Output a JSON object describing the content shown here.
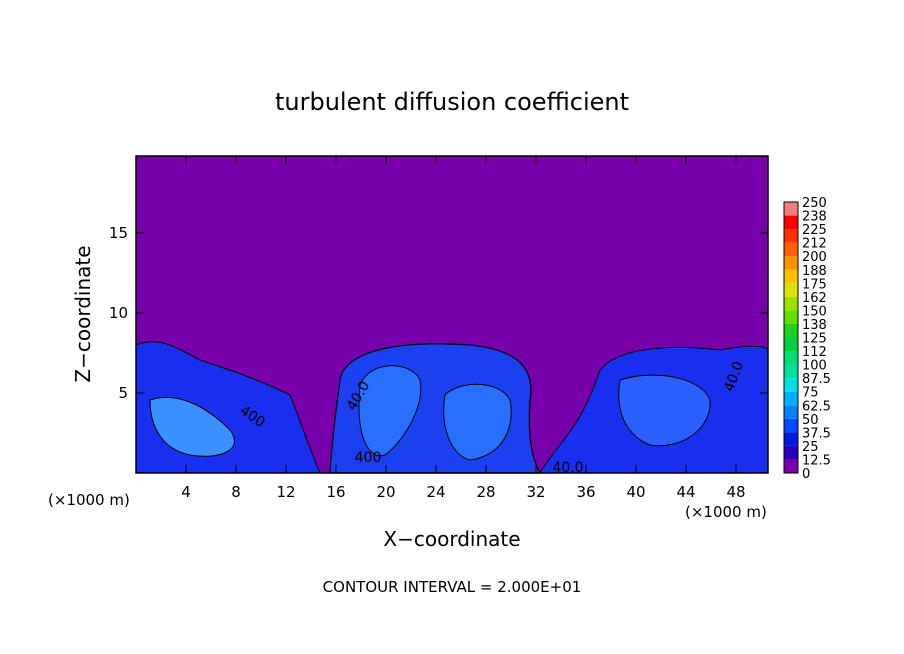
{
  "chart_data": {
    "type": "contour",
    "title": "turbulent diffusion coefficient",
    "xlabel": "X−coordinate",
    "ylabel": "Z−coordinate",
    "x_unit": "(×1000 m)",
    "footer": "CONTOUR INTERVAL = 2.000E+01",
    "xlim": [
      0,
      50.56
    ],
    "ylim": [
      0,
      19.8
    ],
    "xticks": [
      4,
      8,
      12,
      16,
      20,
      24,
      28,
      32,
      36,
      40,
      44,
      48
    ],
    "yticks": [
      5,
      10,
      15
    ],
    "contour_labels": [
      "400",
      "40.0",
      "400",
      "40.0",
      "40.0"
    ],
    "colorbar": {
      "levels": [
        0,
        12.5,
        25,
        37.5,
        50,
        62.5,
        75,
        87.5,
        100,
        112,
        125,
        138,
        150,
        162,
        175,
        188,
        200,
        212,
        225,
        238,
        250
      ],
      "colors": [
        "#7700aa",
        "#2a00c0",
        "#0018e0",
        "#0048ff",
        "#0080ff",
        "#00b0ff",
        "#00e0e0",
        "#00e0a0",
        "#00e070",
        "#00d040",
        "#20d020",
        "#60e000",
        "#a0e000",
        "#e0e000",
        "#ffc000",
        "#ff9000",
        "#ff6000",
        "#ff3000",
        "#ff0000",
        "#f08080"
      ]
    }
  }
}
